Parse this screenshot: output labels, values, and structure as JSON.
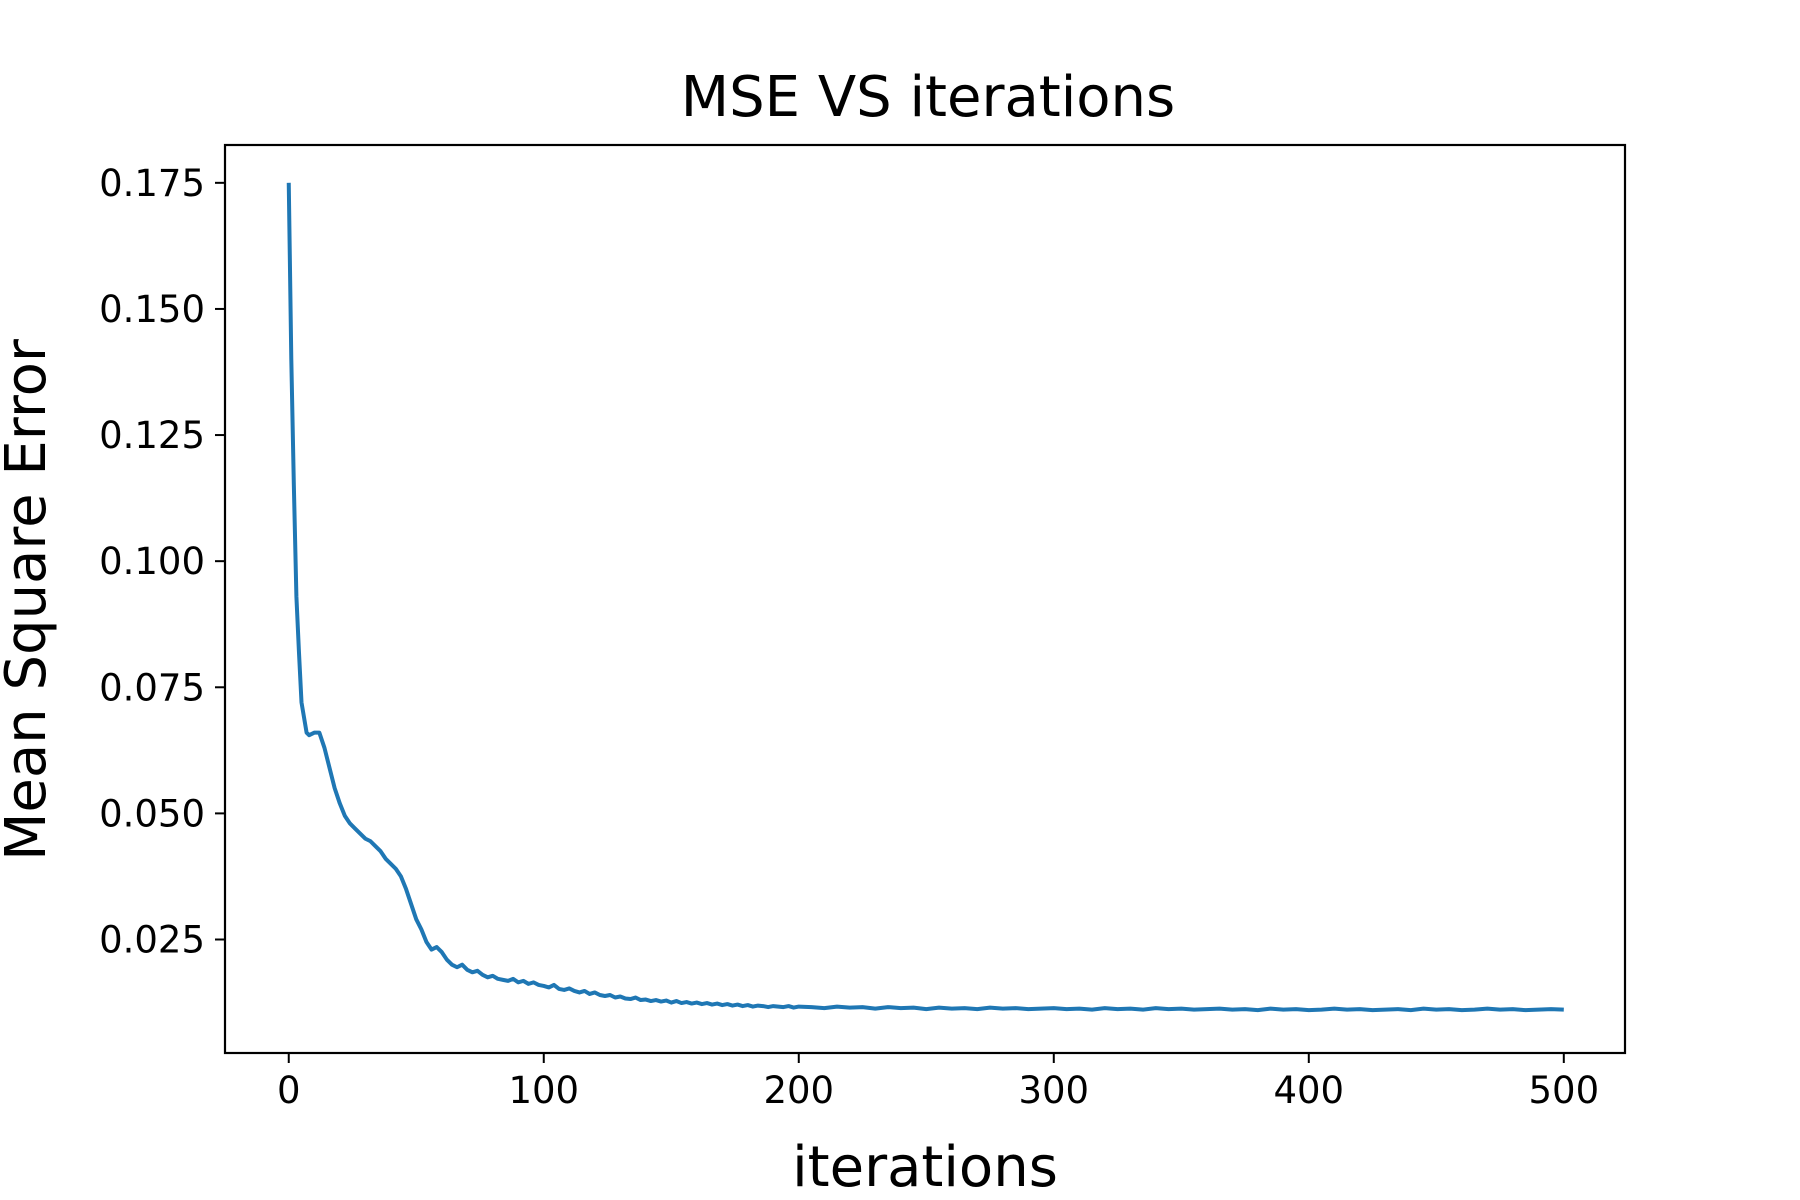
{
  "chart_data": {
    "type": "line",
    "title": "MSE VS iterations",
    "xlabel": "iterations",
    "ylabel": "Mean Square Error",
    "xlim": [
      -25,
      524
    ],
    "ylim": [
      0.0025,
      0.1825
    ],
    "xticks": [
      0,
      100,
      200,
      300,
      400,
      500
    ],
    "xtick_labels": [
      "0",
      "100",
      "200",
      "300",
      "400",
      "500"
    ],
    "yticks": [
      0.025,
      0.05,
      0.075,
      0.1,
      0.125,
      0.15,
      0.175
    ],
    "ytick_labels": [
      "0.025",
      "0.050",
      "0.075",
      "0.100",
      "0.125",
      "0.150",
      "0.175"
    ],
    "grid": false,
    "legend": "none",
    "line_color": "#1f77b4",
    "series": [
      {
        "x": [
          0,
          1,
          2,
          3,
          4,
          5,
          6,
          7,
          8,
          10,
          12,
          14,
          16,
          18,
          20,
          22,
          24,
          26,
          28,
          30,
          32,
          34,
          36,
          38,
          40,
          42,
          44,
          46,
          48,
          50,
          52,
          54,
          56,
          58,
          60,
          62,
          64,
          66,
          68,
          70,
          72,
          74,
          76,
          78,
          80,
          82,
          84,
          86,
          88,
          90,
          92,
          94,
          96,
          98,
          100,
          102,
          104,
          106,
          108,
          110,
          112,
          114,
          116,
          118,
          120,
          122,
          124,
          126,
          128,
          130,
          132,
          134,
          136,
          138,
          140,
          142,
          144,
          146,
          148,
          150,
          152,
          154,
          156,
          158,
          160,
          162,
          164,
          166,
          168,
          170,
          172,
          174,
          176,
          178,
          180,
          182,
          184,
          186,
          188,
          190,
          192,
          194,
          196,
          198,
          200,
          205,
          210,
          215,
          220,
          225,
          230,
          235,
          240,
          245,
          250,
          255,
          260,
          265,
          270,
          275,
          280,
          285,
          290,
          295,
          300,
          305,
          310,
          315,
          320,
          325,
          330,
          335,
          340,
          345,
          350,
          355,
          360,
          365,
          370,
          375,
          380,
          385,
          390,
          395,
          400,
          405,
          410,
          415,
          420,
          425,
          430,
          435,
          440,
          445,
          450,
          455,
          460,
          465,
          470,
          475,
          480,
          485,
          490,
          495,
          500
        ],
        "y": [
          0.175,
          0.14,
          0.115,
          0.093,
          0.082,
          0.072,
          0.069,
          0.066,
          0.0655,
          0.066,
          0.066,
          0.063,
          0.059,
          0.055,
          0.052,
          0.0495,
          0.048,
          0.047,
          0.046,
          0.045,
          0.0445,
          0.0435,
          0.0425,
          0.041,
          0.04,
          0.039,
          0.0375,
          0.035,
          0.032,
          0.029,
          0.027,
          0.0245,
          0.023,
          0.0235,
          0.0225,
          0.021,
          0.02,
          0.0195,
          0.02,
          0.019,
          0.0185,
          0.0188,
          0.018,
          0.0175,
          0.0178,
          0.0172,
          0.017,
          0.0168,
          0.0172,
          0.0165,
          0.0168,
          0.0162,
          0.0165,
          0.016,
          0.0158,
          0.0155,
          0.016,
          0.0152,
          0.015,
          0.0153,
          0.0148,
          0.0145,
          0.0148,
          0.0142,
          0.0145,
          0.014,
          0.0138,
          0.014,
          0.0135,
          0.0137,
          0.0133,
          0.0132,
          0.0135,
          0.013,
          0.0131,
          0.0128,
          0.013,
          0.0127,
          0.0129,
          0.0125,
          0.0128,
          0.0124,
          0.0126,
          0.0123,
          0.0125,
          0.0122,
          0.0124,
          0.0121,
          0.0123,
          0.012,
          0.0122,
          0.0119,
          0.0121,
          0.0118,
          0.012,
          0.0117,
          0.0119,
          0.0118,
          0.0116,
          0.0118,
          0.0117,
          0.0116,
          0.0118,
          0.0115,
          0.0117,
          0.0116,
          0.0114,
          0.0117,
          0.0115,
          0.0116,
          0.0113,
          0.0116,
          0.0114,
          0.0115,
          0.0112,
          0.0115,
          0.0113,
          0.0114,
          0.0112,
          0.0115,
          0.0113,
          0.0114,
          0.0112,
          0.0113,
          0.0114,
          0.0112,
          0.0113,
          0.0111,
          0.0114,
          0.0112,
          0.0113,
          0.0111,
          0.0114,
          0.0112,
          0.0113,
          0.0111,
          0.0112,
          0.0113,
          0.0111,
          0.0112,
          0.011,
          0.0113,
          0.0111,
          0.0112,
          0.011,
          0.0111,
          0.0113,
          0.0111,
          0.0112,
          0.011,
          0.0111,
          0.0112,
          0.011,
          0.0113,
          0.0111,
          0.0112,
          0.011,
          0.0111,
          0.0113,
          0.0111,
          0.0112,
          0.011,
          0.0111,
          0.0112,
          0.0111
        ]
      }
    ]
  }
}
